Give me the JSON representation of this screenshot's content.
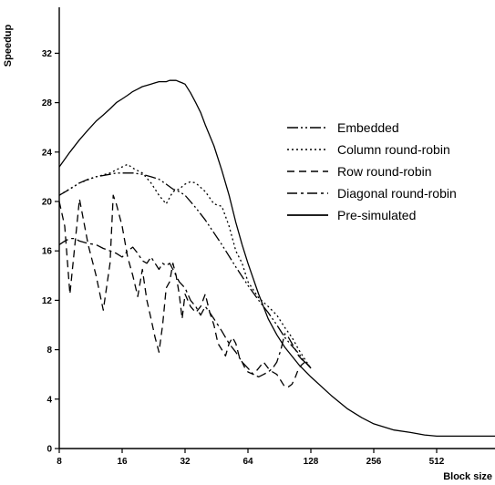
{
  "chart_data": {
    "type": "line",
    "title": "",
    "xlabel": "Block size",
    "ylabel": "Speedup",
    "x_scale": "log2",
    "x_ticks": [
      8,
      16,
      32,
      64,
      128,
      256,
      512
    ],
    "y_ticks": [
      0,
      4,
      8,
      12,
      16,
      20,
      24,
      28,
      32
    ],
    "xlim": [
      8,
      1024
    ],
    "ylim": [
      0,
      35
    ],
    "grid": false,
    "legend_position": "right",
    "series": [
      {
        "name": "Embedded",
        "dash": "12 3 2 3 2 3",
        "x": [
          8,
          9,
          10,
          11,
          12,
          13,
          14,
          15,
          16,
          17,
          18,
          20,
          22,
          24,
          26,
          28,
          30,
          32,
          36,
          40,
          48,
          56,
          64,
          72,
          80,
          88,
          96,
          104,
          112,
          120,
          128
        ],
        "y": [
          20.5,
          21,
          21.5,
          21.8,
          22.0,
          22.1,
          22.2,
          22.3,
          22.3,
          22.3,
          22.3,
          22.2,
          22.0,
          21.8,
          21.4,
          21.0,
          20.8,
          20.5,
          19.5,
          18.5,
          16.5,
          14.7,
          13.2,
          12.0,
          11.0,
          10.0,
          9.0,
          8.3,
          7.7,
          7.0,
          6.5
        ]
      },
      {
        "name": "Column round-robin",
        "dash": "2 3",
        "x": [
          8,
          10,
          12,
          14,
          16,
          17,
          18,
          20,
          22,
          24,
          26,
          28,
          30,
          32,
          34,
          36,
          40,
          44,
          48,
          52,
          56,
          60,
          64,
          72,
          80,
          88,
          96,
          104,
          112,
          120,
          128
        ],
        "y": [
          20.5,
          21.5,
          22.0,
          22.3,
          22.8,
          23.0,
          22.7,
          22.3,
          21.5,
          20.5,
          19.8,
          20.8,
          21.0,
          21.4,
          21.6,
          21.5,
          20.8,
          19.8,
          19.6,
          18.0,
          16.0,
          15.0,
          13.5,
          12.2,
          11.5,
          10.8,
          9.8,
          9.0,
          8.0,
          7.2,
          6.5
        ]
      },
      {
        "name": "Row round-robin",
        "dash": "8 5",
        "x": [
          8,
          8.5,
          9,
          10,
          11,
          12,
          13,
          14,
          14.5,
          15,
          16,
          17,
          18,
          19,
          20,
          21,
          22,
          23,
          24,
          25,
          26,
          27,
          28,
          29,
          30,
          31,
          32,
          34,
          36,
          38,
          40,
          42,
          44,
          46,
          48,
          50,
          52,
          54,
          56,
          58,
          60,
          62,
          64,
          68,
          72,
          76,
          80,
          84,
          88,
          92,
          96,
          100,
          104,
          108,
          112,
          116,
          120,
          124,
          128
        ],
        "y": [
          20.0,
          18.0,
          12.5,
          20.2,
          16.5,
          14.0,
          11.2,
          15.0,
          20.5,
          19.8,
          18.0,
          15.5,
          14.0,
          12.3,
          14.5,
          12.0,
          10.5,
          9.0,
          7.8,
          10.0,
          13.0,
          13.5,
          15.0,
          14.0,
          12.5,
          10.5,
          12.5,
          11.5,
          11.0,
          11.5,
          12.5,
          11.0,
          10.0,
          8.5,
          8.0,
          7.5,
          8.5,
          9.0,
          8.5,
          7.5,
          7.0,
          6.5,
          6.2,
          6.0,
          6.5,
          7.0,
          6.5,
          6.2,
          6.0,
          5.5,
          5.0,
          5.0,
          5.2,
          5.8,
          6.5,
          6.8,
          7.0,
          6.8,
          6.5
        ]
      },
      {
        "name": "Diagonal round-robin",
        "dash": "11 4 3 4",
        "x": [
          8,
          8.5,
          9,
          9.5,
          10,
          11,
          12,
          13,
          14,
          15,
          16,
          17,
          18,
          19,
          20,
          21,
          22,
          23,
          24,
          25,
          26,
          27,
          28,
          30,
          32,
          34,
          36,
          38,
          40,
          42,
          44,
          46,
          48,
          52,
          56,
          60,
          64,
          68,
          72,
          76,
          80,
          84,
          88,
          92,
          96,
          100,
          104,
          108,
          112,
          116,
          120,
          124,
          128
        ],
        "y": [
          16.5,
          16.8,
          17.0,
          17.0,
          16.8,
          16.6,
          16.5,
          16.2,
          16.0,
          15.8,
          15.5,
          16.0,
          16.3,
          15.8,
          15.2,
          15.0,
          15.5,
          15.0,
          14.5,
          15.0,
          14.8,
          15.0,
          14.5,
          13.5,
          13.0,
          12.0,
          11.5,
          10.8,
          11.5,
          11.0,
          10.5,
          10.0,
          9.5,
          8.5,
          7.8,
          7.0,
          6.5,
          6.0,
          5.8,
          6.0,
          6.2,
          6.5,
          7.0,
          8.0,
          9.3,
          9.0,
          8.5,
          8.0,
          7.5,
          7.2,
          7.0,
          6.8,
          6.5
        ]
      },
      {
        "name": "Pre-simulated",
        "dash": "",
        "x": [
          8,
          9,
          10,
          11,
          12,
          13,
          14,
          15,
          16,
          17,
          18,
          19,
          20,
          21,
          22,
          23,
          24,
          25,
          26,
          27,
          28,
          29,
          30,
          31,
          32,
          34,
          36,
          38,
          40,
          44,
          48,
          52,
          56,
          60,
          64,
          72,
          80,
          88,
          96,
          112,
          128,
          160,
          192,
          224,
          256,
          320,
          384,
          448,
          512,
          600,
          768,
          1024
        ],
        "y": [
          22.8,
          24.0,
          25.0,
          25.8,
          26.5,
          27.0,
          27.5,
          28.0,
          28.3,
          28.6,
          28.9,
          29.1,
          29.3,
          29.4,
          29.5,
          29.6,
          29.7,
          29.7,
          29.7,
          29.8,
          29.8,
          29.8,
          29.7,
          29.6,
          29.5,
          28.8,
          28.0,
          27.2,
          26.2,
          24.5,
          22.5,
          20.5,
          18.3,
          16.5,
          15.0,
          12.5,
          10.5,
          9.2,
          8.2,
          6.8,
          5.8,
          4.3,
          3.2,
          2.5,
          2.0,
          1.5,
          1.3,
          1.1,
          1.0,
          1.0,
          1.0,
          1.0
        ]
      }
    ]
  }
}
